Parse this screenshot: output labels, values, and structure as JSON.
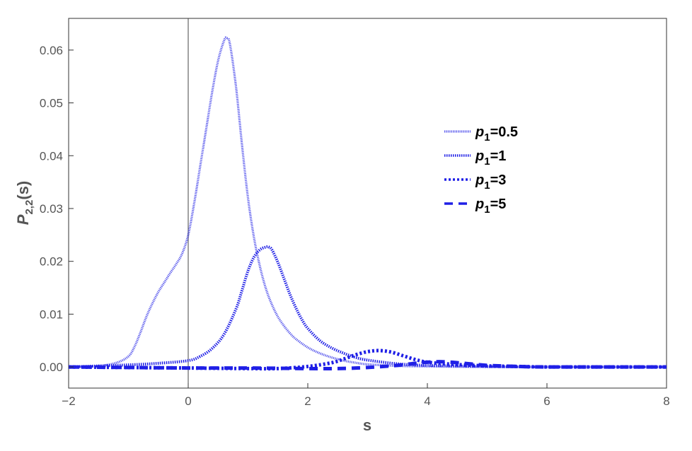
{
  "chart_data": {
    "type": "line",
    "xlabel": "s",
    "ylabel": {
      "base": "P",
      "sub": "2,2",
      "suffix": "(s)"
    },
    "xlim": [
      -2,
      8
    ],
    "ylim": [
      -0.004,
      0.066
    ],
    "xticks": [
      -2,
      0,
      2,
      4,
      6,
      8
    ],
    "xtick_labels": [
      "−2",
      "0",
      "2",
      "4",
      "6",
      "8"
    ],
    "yticks": [
      0.0,
      0.01,
      0.02,
      0.03,
      0.04,
      0.05,
      0.06
    ],
    "ytick_labels": [
      "0.00",
      "0.01",
      "0.02",
      "0.03",
      "0.04",
      "0.05",
      "0.06"
    ],
    "vertical_line_at_x": 0,
    "legend_position": "right-middle",
    "color": "#1f1fe6",
    "series": [
      {
        "name": "p1=0.5",
        "label_base": "p",
        "label_sub": "1",
        "label_rest": "=0.5",
        "style": "solid",
        "x": [
          -2.0,
          -1.5,
          -1.2,
          -1.0,
          -0.9,
          -0.8,
          -0.7,
          -0.6,
          -0.5,
          -0.4,
          -0.3,
          -0.2,
          -0.1,
          0.0,
          0.1,
          0.2,
          0.3,
          0.4,
          0.5,
          0.6,
          0.65,
          0.7,
          0.8,
          0.9,
          1.0,
          1.1,
          1.2,
          1.3,
          1.4,
          1.5,
          1.6,
          1.7,
          1.8,
          2.0,
          2.2,
          2.4,
          2.6,
          2.8,
          3.0,
          3.5,
          4.0,
          5.0,
          6.0,
          8.0
        ],
        "y": [
          0.0,
          0.0002,
          0.0008,
          0.002,
          0.0038,
          0.0065,
          0.0095,
          0.012,
          0.0142,
          0.016,
          0.0178,
          0.0195,
          0.0215,
          0.025,
          0.031,
          0.038,
          0.045,
          0.052,
          0.058,
          0.0618,
          0.0623,
          0.061,
          0.053,
          0.042,
          0.032,
          0.0245,
          0.019,
          0.0148,
          0.0118,
          0.0095,
          0.0078,
          0.0064,
          0.0053,
          0.0037,
          0.0026,
          0.0018,
          0.0012,
          0.0008,
          0.0005,
          0.0002,
          0.0001,
          0.0,
          0.0,
          0.0
        ]
      },
      {
        "name": "p1=1",
        "label_base": "p",
        "label_sub": "1",
        "label_rest": "=1",
        "style": "dense-dotted",
        "x": [
          -2.0,
          -1.0,
          -0.5,
          0.0,
          0.2,
          0.4,
          0.6,
          0.8,
          0.9,
          1.0,
          1.1,
          1.2,
          1.3,
          1.35,
          1.4,
          1.5,
          1.6,
          1.7,
          1.8,
          1.9,
          2.0,
          2.2,
          2.4,
          2.6,
          2.8,
          3.0,
          3.5,
          4.0,
          5.0,
          6.0,
          8.0
        ],
        "y": [
          0.0,
          0.0004,
          0.0007,
          0.0012,
          0.002,
          0.0035,
          0.0062,
          0.011,
          0.0145,
          0.0182,
          0.0208,
          0.0222,
          0.0227,
          0.0227,
          0.0222,
          0.0198,
          0.0168,
          0.0138,
          0.0112,
          0.009,
          0.0073,
          0.005,
          0.0036,
          0.0026,
          0.0018,
          0.0013,
          0.0006,
          0.0003,
          0.0001,
          0.0,
          0.0
        ]
      },
      {
        "name": "p1=3",
        "label_base": "p",
        "label_sub": "1",
        "label_rest": "=3",
        "style": "dotted",
        "x": [
          -2.0,
          -1.0,
          0.0,
          1.0,
          1.5,
          2.0,
          2.4,
          2.6,
          2.8,
          3.0,
          3.2,
          3.4,
          3.6,
          3.8,
          4.0,
          4.3,
          4.6,
          5.0,
          5.5,
          6.0,
          7.0,
          8.0
        ],
        "y": [
          0.0,
          -0.0001,
          -0.0002,
          -0.0003,
          -0.0003,
          0.0001,
          0.0008,
          0.0015,
          0.0023,
          0.0029,
          0.0031,
          0.0028,
          0.0021,
          0.0014,
          0.0009,
          0.0006,
          0.0004,
          0.0002,
          0.0001,
          0.0,
          0.0,
          0.0
        ]
      },
      {
        "name": "p1=5",
        "label_base": "p",
        "label_sub": "1",
        "label_rest": "=5",
        "style": "dashed",
        "x": [
          -2.0,
          -1.0,
          0.0,
          1.0,
          2.0,
          2.5,
          3.0,
          3.5,
          3.8,
          4.0,
          4.2,
          4.4,
          4.6,
          4.8,
          5.0,
          5.5,
          6.0,
          7.0,
          8.0
        ],
        "y": [
          0.0,
          -0.0001,
          -0.0002,
          -0.0002,
          -0.0003,
          -0.0003,
          -0.0001,
          0.0003,
          0.0007,
          0.0009,
          0.001,
          0.0009,
          0.0007,
          0.0005,
          0.0003,
          0.0001,
          0.0,
          0.0,
          0.0
        ]
      }
    ]
  }
}
